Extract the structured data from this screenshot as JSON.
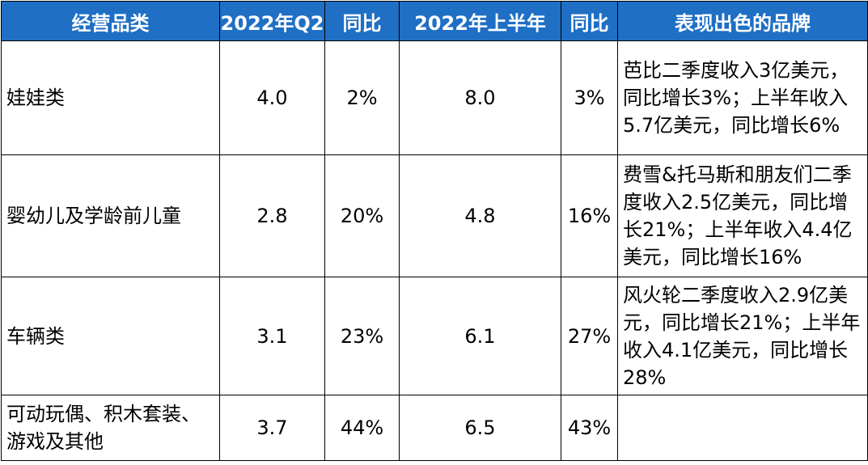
{
  "headers": [
    "经营品类",
    "2022年Q2",
    "同比",
    "2022年上半年",
    "同比",
    "表现出色的品牌"
  ],
  "rows": [
    {
      "category": "娃娃类",
      "q2": "4.0",
      "q2_yoy": "2%",
      "h1": "8.0",
      "h1_yoy": "3%",
      "brand": "芭比二季度收入3亿美元，同比增长3%；上半年收入5.7亿美元，同比增长6%"
    },
    {
      "category": "婴幼儿及学龄前儿童",
      "q2": "2.8",
      "q2_yoy": "20%",
      "h1": "4.8",
      "h1_yoy": "16%",
      "brand": "费雪&托马斯和朋友们二季度收入2.5亿美元，同比增长21%；上半年收入4.4亿美元，同比增长16%"
    },
    {
      "category": "车辆类",
      "q2": "3.1",
      "q2_yoy": "23%",
      "h1": "6.1",
      "h1_yoy": "27%",
      "brand": "风火轮二季度收入2.9亿美元，同比增长21%；上半年收入4.1亿美元，同比增长28%"
    },
    {
      "category": "可动玩偶、积木套装、游戏及其他",
      "q2": "3.7",
      "q2_yoy": "44%",
      "h1": "6.5",
      "h1_yoy": "43%",
      "brand": ""
    }
  ]
}
